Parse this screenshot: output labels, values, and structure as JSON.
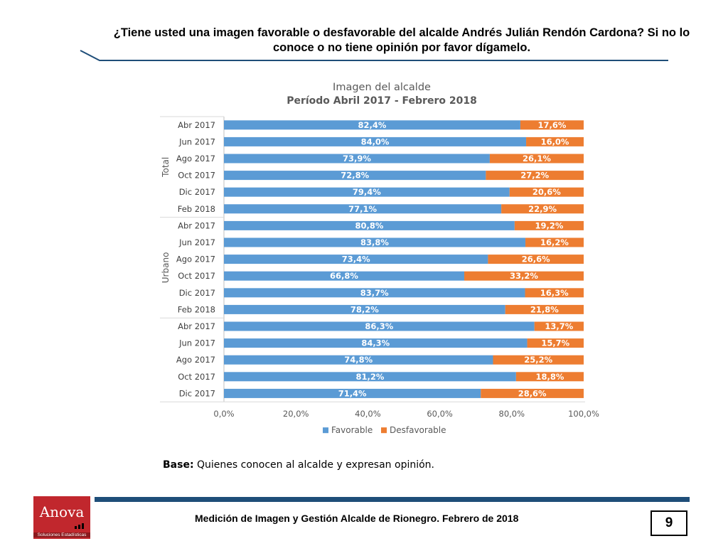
{
  "question": "¿Tiene usted una imagen favorable o desfavorable del alcalde Andrés Julián Rendón Cardona? Si no lo conoce o no tiene opinión por favor dígamelo.",
  "base": {
    "label": "Base:",
    "text": "Quienes conocen al alcalde y expresan opinión."
  },
  "footer": {
    "text": "Medición de Imagen y Gestión Alcalde de Rionegro. Febrero de 2018",
    "page": "9"
  },
  "logo": {
    "name": "Anova",
    "subtitle": "Soluciones Estadísticas"
  },
  "chart_data": {
    "type": "bar",
    "orientation": "horizontal",
    "stacked": true,
    "title": "Imagen del alcalde",
    "subtitle": "Período Abril 2017 - Febrero 2018",
    "xlim": [
      0,
      100
    ],
    "xticks": [
      "0,0%",
      "20,0%",
      "40,0%",
      "60,0%",
      "80,0%",
      "100,0%"
    ],
    "groups": [
      {
        "name": "Total",
        "categories": [
          "Abr 2017",
          "Jun 2017",
          "Ago 2017",
          "Oct 2017",
          "Dic 2017",
          "Feb 2018"
        ]
      },
      {
        "name": "Urbano",
        "categories": [
          "Abr 2017",
          "Jun 2017",
          "Ago 2017",
          "Oct 2017",
          "Dic 2017",
          "Feb 2018"
        ]
      },
      {
        "name": "",
        "categories": [
          "Abr 2017",
          "Jun 2017",
          "Ago 2017",
          "Oct 2017",
          "Dic 2017"
        ]
      }
    ],
    "series": [
      {
        "name": "Favorable",
        "color": "#5b9bd5",
        "values": [
          82.4,
          84.0,
          73.9,
          72.8,
          79.4,
          77.1,
          80.8,
          83.8,
          73.4,
          66.8,
          83.7,
          78.2,
          86.3,
          84.3,
          74.8,
          81.2,
          71.4
        ],
        "labels": [
          "82,4%",
          "84,0%",
          "73,9%",
          "72,8%",
          "79,4%",
          "77,1%",
          "80,8%",
          "83,8%",
          "73,4%",
          "66,8%",
          "83,7%",
          "78,2%",
          "86,3%",
          "84,3%",
          "74,8%",
          "81,2%",
          "71,4%"
        ]
      },
      {
        "name": "Desfavorable",
        "color": "#ed7d31",
        "values": [
          17.6,
          16.0,
          26.1,
          27.2,
          20.6,
          22.9,
          19.2,
          16.2,
          26.6,
          33.2,
          16.3,
          21.8,
          13.7,
          15.7,
          25.2,
          18.8,
          28.6
        ],
        "labels": [
          "17,6%",
          "16,0%",
          "26,1%",
          "27,2%",
          "20,6%",
          "22,9%",
          "19,2%",
          "16,2%",
          "26,6%",
          "33,2%",
          "16,3%",
          "21,8%",
          "13,7%",
          "15,7%",
          "25,2%",
          "18,8%",
          "28,6%"
        ]
      }
    ],
    "legend_position": "bottom"
  }
}
